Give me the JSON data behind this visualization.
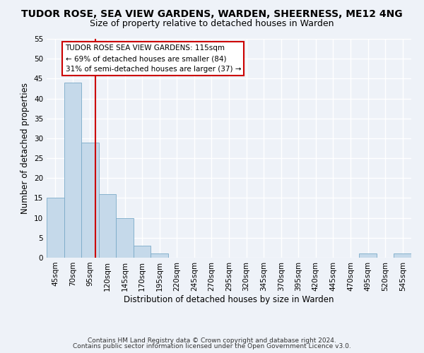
{
  "title": "TUDOR ROSE, SEA VIEW GARDENS, WARDEN, SHEERNESS, ME12 4NG",
  "subtitle": "Size of property relative to detached houses in Warden",
  "xlabel": "Distribution of detached houses by size in Warden",
  "ylabel": "Number of detached properties",
  "bar_color": "#c5d9ea",
  "bar_edge_color": "#7aaac8",
  "bins": [
    "45sqm",
    "70sqm",
    "95sqm",
    "120sqm",
    "145sqm",
    "170sqm",
    "195sqm",
    "220sqm",
    "245sqm",
    "270sqm",
    "295sqm",
    "320sqm",
    "345sqm",
    "370sqm",
    "395sqm",
    "420sqm",
    "445sqm",
    "470sqm",
    "495sqm",
    "520sqm",
    "545sqm"
  ],
  "values": [
    15,
    44,
    29,
    16,
    10,
    3,
    1,
    0,
    0,
    0,
    0,
    0,
    0,
    0,
    0,
    0,
    0,
    0,
    1,
    0,
    1
  ],
  "ylim": [
    0,
    55
  ],
  "yticks": [
    0,
    5,
    10,
    15,
    20,
    25,
    30,
    35,
    40,
    45,
    50,
    55
  ],
  "vline_color": "#cc0000",
  "annotation_title": "TUDOR ROSE SEA VIEW GARDENS: 115sqm",
  "annotation_line1": "← 69% of detached houses are smaller (84)",
  "annotation_line2": "31% of semi-detached houses are larger (37) →",
  "footer1": "Contains HM Land Registry data © Crown copyright and database right 2024.",
  "footer2": "Contains public sector information licensed under the Open Government Licence v3.0.",
  "background_color": "#eef2f8",
  "grid_color": "#ffffff",
  "title_fontsize": 10,
  "subtitle_fontsize": 9,
  "axis_label_fontsize": 8.5,
  "tick_fontsize": 7.5,
  "footer_fontsize": 6.5
}
